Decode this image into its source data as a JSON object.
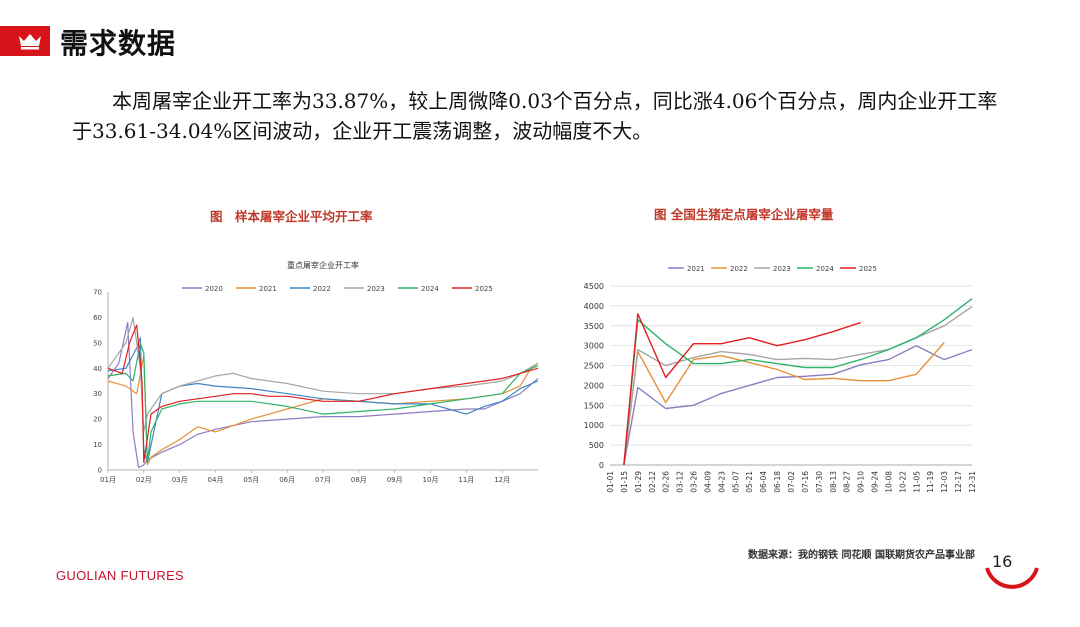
{
  "header": {
    "title": "需求数据"
  },
  "summary": "本周屠宰企业开工率为33.87%，较上周微降0.03个百分点，同比涨4.06个百分点，周内企业开工率于33.61-34.04%区间波动，企业开工震荡调整，波动幅度不大。",
  "figure1": {
    "caption": "图　样本屠宰企业平均开工率"
  },
  "figure2": {
    "caption": "图  全国生猪定点屠宰企业屠宰量"
  },
  "footer": {
    "source": "数据来源：我的钢铁  同花顺  国联期货农产品事业部",
    "logo": "GUOLIAN FUTURES",
    "page": "16"
  },
  "colors": {
    "accent": "#d7141a"
  },
  "chart_data": [
    {
      "type": "line",
      "title": "重点屠宰企业开工率",
      "ylim": [
        0,
        70
      ],
      "yticks": [
        0,
        10,
        20,
        30,
        40,
        50,
        60,
        70
      ],
      "xticks": [
        "01月",
        "02月",
        "03月",
        "04月",
        "05月",
        "06月",
        "07月",
        "08月",
        "09月",
        "10月",
        "11月",
        "12月"
      ],
      "x_domain": [
        1,
        13
      ],
      "grid": false,
      "legend": "top",
      "series": [
        {
          "name": "2020",
          "color": "#8e7cc3",
          "x": [
            1,
            1.3,
            1.55,
            1.7,
            1.85,
            2.0,
            2.1,
            2.5,
            3,
            3.5,
            4,
            5,
            6,
            7,
            8,
            9,
            10,
            11,
            11.5,
            12,
            12.5,
            13
          ],
          "y": [
            36,
            42,
            58,
            15,
            1,
            2,
            4,
            7,
            10,
            14,
            16,
            19,
            20,
            21,
            21,
            22,
            23,
            24,
            24,
            27,
            30,
            36
          ]
        },
        {
          "name": "2021",
          "color": "#e69138",
          "x": [
            1,
            1.5,
            1.8,
            2.0,
            2.1,
            2.2,
            2.5,
            3,
            3.5,
            4,
            5,
            6,
            7,
            8,
            9,
            10,
            11,
            12,
            12.5,
            12.8,
            13
          ],
          "y": [
            35,
            33,
            30,
            45,
            2,
            5,
            8,
            12,
            17,
            15,
            20,
            24,
            28,
            27,
            26,
            27,
            28,
            30,
            33,
            40,
            42
          ]
        },
        {
          "name": "2022",
          "color": "#3d85c6",
          "x": [
            1,
            1.5,
            1.8,
            1.9,
            2.0,
            2.1,
            2.5,
            3,
            3.5,
            4,
            5,
            6,
            7,
            8,
            9,
            10,
            11,
            11.5,
            12,
            12.5,
            13
          ],
          "y": [
            39,
            40,
            48,
            52,
            8,
            3,
            30,
            33,
            34,
            33,
            32,
            30,
            28,
            27,
            26,
            26,
            22,
            25,
            27,
            32,
            35
          ]
        },
        {
          "name": "2023",
          "color": "#a6a6a6",
          "x": [
            1,
            1.5,
            1.7,
            1.9,
            2.0,
            2.1,
            2.5,
            3,
            3.5,
            4,
            4.5,
            5,
            6,
            7,
            8,
            9,
            10,
            11,
            11.5,
            12,
            12.5,
            13
          ],
          "y": [
            40,
            50,
            60,
            40,
            15,
            22,
            30,
            33,
            35,
            37,
            38,
            36,
            34,
            31,
            30,
            30,
            32,
            33,
            34,
            35,
            38,
            42
          ]
        },
        {
          "name": "2024",
          "color": "#2db36a",
          "x": [
            1,
            1.5,
            1.7,
            1.9,
            2.0,
            2.1,
            2.2,
            2.5,
            3,
            3.5,
            4,
            5,
            6,
            7,
            8,
            9,
            10,
            11,
            12,
            12.5,
            13
          ],
          "y": [
            37,
            38,
            35,
            50,
            46,
            3,
            15,
            24,
            26,
            27,
            27,
            27,
            25,
            22,
            23,
            24,
            26,
            28,
            30,
            38,
            41
          ]
        },
        {
          "name": "2025",
          "color": "#e02020",
          "x": [
            1,
            1.4,
            1.6,
            1.8,
            1.95,
            2.0,
            2.2,
            2.5,
            3,
            3.5,
            4,
            4.5,
            5,
            5.5,
            6,
            7,
            8,
            9,
            9.5,
            10,
            10.5,
            11,
            11.5,
            12,
            12.5,
            13
          ],
          "y": [
            40,
            38,
            50,
            57,
            35,
            3,
            22,
            25,
            27,
            28,
            29,
            30,
            30,
            29,
            29,
            27,
            27,
            30,
            31,
            32,
            33,
            34,
            35,
            36,
            38,
            40
          ]
        }
      ]
    },
    {
      "type": "line",
      "ylim": [
        0,
        4500
      ],
      "yticks": [
        0,
        500,
        1000,
        1500,
        2000,
        2500,
        3000,
        3500,
        4000,
        4500
      ],
      "categories": [
        "01-01",
        "01-15",
        "01-29",
        "02-12",
        "02-26",
        "03-12",
        "03-26",
        "04-09",
        "04-23",
        "05-07",
        "05-21",
        "06-04",
        "06-18",
        "07-02",
        "07-16",
        "07-30",
        "08-13",
        "08-27",
        "09-10",
        "09-24",
        "10-08",
        "10-22",
        "11-05",
        "11-19",
        "12-03",
        "12-17",
        "12-31"
      ],
      "grid": true,
      "legend": "top",
      "series": [
        {
          "name": "2021",
          "color": "#8e7cc3",
          "points": [
            [
              1,
              0
            ],
            [
              2,
              1950
            ],
            [
              4,
              1420
            ],
            [
              6,
              1500
            ],
            [
              8,
              1800
            ],
            [
              10,
              2000
            ],
            [
              12,
              2200
            ],
            [
              14,
              2230
            ],
            [
              16,
              2280
            ],
            [
              18,
              2520
            ],
            [
              20,
              2650
            ],
            [
              22,
              3000
            ],
            [
              24,
              2650
            ],
            [
              26,
              2900
            ]
          ]
        },
        {
          "name": "2022",
          "color": "#e69138",
          "points": [
            [
              1,
              0
            ],
            [
              2,
              2850
            ],
            [
              4,
              1570
            ],
            [
              6,
              2650
            ],
            [
              8,
              2750
            ],
            [
              10,
              2580
            ],
            [
              12,
              2400
            ],
            [
              14,
              2150
            ],
            [
              16,
              2180
            ],
            [
              18,
              2120
            ],
            [
              20,
              2120
            ],
            [
              22,
              2280
            ],
            [
              24,
              3080
            ]
          ]
        },
        {
          "name": "2023",
          "color": "#a6a6a6",
          "points": [
            [
              1,
              0
            ],
            [
              2,
              2900
            ],
            [
              4,
              2500
            ],
            [
              6,
              2700
            ],
            [
              8,
              2850
            ],
            [
              10,
              2780
            ],
            [
              12,
              2650
            ],
            [
              14,
              2680
            ],
            [
              16,
              2650
            ],
            [
              18,
              2780
            ],
            [
              20,
              2900
            ],
            [
              22,
              3200
            ],
            [
              24,
              3500
            ],
            [
              26,
              3980
            ]
          ]
        },
        {
          "name": "2024",
          "color": "#2db36a",
          "points": [
            [
              1,
              0
            ],
            [
              2,
              3650
            ],
            [
              4,
              3050
            ],
            [
              6,
              2550
            ],
            [
              8,
              2550
            ],
            [
              10,
              2650
            ],
            [
              12,
              2550
            ],
            [
              14,
              2450
            ],
            [
              16,
              2450
            ],
            [
              18,
              2650
            ],
            [
              20,
              2900
            ],
            [
              22,
              3200
            ],
            [
              24,
              3650
            ],
            [
              26,
              4180
            ]
          ]
        },
        {
          "name": "2025",
          "color": "#e02020",
          "points": [
            [
              1,
              0
            ],
            [
              2,
              3800
            ],
            [
              4,
              2200
            ],
            [
              6,
              3050
            ],
            [
              8,
              3050
            ],
            [
              10,
              3200
            ],
            [
              12,
              3000
            ],
            [
              14,
              3150
            ],
            [
              16,
              3350
            ],
            [
              18,
              3580
            ]
          ]
        }
      ]
    }
  ]
}
